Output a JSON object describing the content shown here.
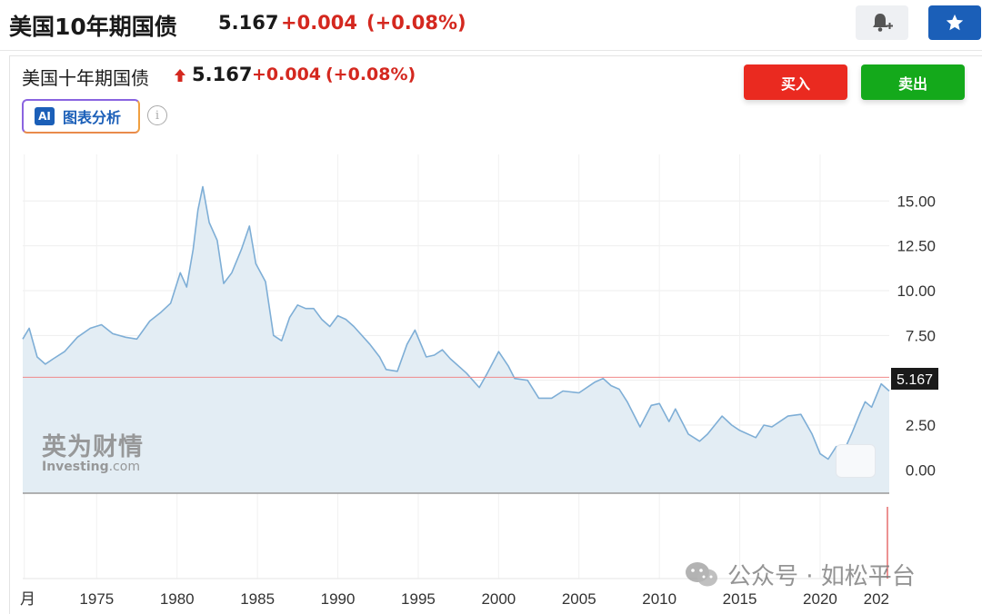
{
  "header": {
    "title": "美国10年期国债",
    "price": "5.167",
    "change": "+0.004",
    "change_pct": "(+0.08%)",
    "bell_icon": "bell-plus-icon",
    "star_icon": "star-icon"
  },
  "widget": {
    "name": "美国十年期国债",
    "price": "5.167",
    "change": "+0.004",
    "change_pct": "(+0.08%)",
    "buy_label": "买入",
    "sell_label": "卖出",
    "ai_badge": "AI",
    "ai_label": "图表分析",
    "info_icon": "i"
  },
  "watermark": {
    "cn": "英为财情",
    "en_bold": "Investing",
    "en_suffix": ".com"
  },
  "wechat": {
    "label": "公众号 · 如松平台"
  },
  "colors": {
    "up": "#d4281f",
    "buy": "#ea2a20",
    "sell": "#14a91b",
    "accent": "#1b5fb8",
    "line": "#7eaed6",
    "area": "#e3edf4"
  },
  "chart_data": {
    "type": "area",
    "title": "",
    "xlabel": "",
    "ylabel": "",
    "y_axis_position": "right",
    "ylim": [
      -1.3,
      17.6
    ],
    "y_ticks": [
      "15.00",
      "12.50",
      "10.00",
      "7.50",
      "5.00",
      "2.50",
      "0.00"
    ],
    "y_tick_values": [
      15,
      12.5,
      10,
      7.5,
      5,
      2.5,
      0
    ],
    "x_ticks": [
      "月",
      "1975",
      "1980",
      "1985",
      "1990",
      "1995",
      "2000",
      "2005",
      "2010",
      "2015",
      "2020",
      "202"
    ],
    "x_tick_values": [
      1970.5,
      1975,
      1980,
      1985,
      1990,
      1995,
      2000,
      2005,
      2010,
      2015,
      2020,
      2025
    ],
    "xlim": [
      1970.4,
      2024.3
    ],
    "current_value": 5.167,
    "current_label": "5.167",
    "series": [
      {
        "x": [
          1970.4,
          1970.8,
          1971.3,
          1971.8,
          1972.3,
          1973,
          1973.8,
          1974.6,
          1975.3,
          1976,
          1976.8,
          1977.5,
          1978.3,
          1979,
          1979.6,
          1980.2,
          1980.6,
          1981,
          1981.3,
          1981.6,
          1982,
          1982.5,
          1982.9,
          1983.4,
          1984,
          1984.5,
          1984.9,
          1985.5,
          1986,
          1986.5,
          1987,
          1987.5,
          1988,
          1988.5,
          1989,
          1989.5,
          1990,
          1990.5,
          1991,
          1992,
          1992.6,
          1993,
          1993.7,
          1994.3,
          1994.8,
          1995.5,
          1996,
          1996.5,
          1997,
          1998,
          1998.8,
          1999.3,
          2000,
          2000.6,
          2001,
          2001.8,
          2002.5,
          2003.3,
          2004,
          2005,
          2006,
          2006.5,
          2007,
          2007.5,
          2008,
          2008.8,
          2009.5,
          2010,
          2010.6,
          2011,
          2011.8,
          2012.5,
          2013,
          2013.9,
          2014.5,
          2015,
          2016,
          2016.5,
          2017,
          2018,
          2018.8,
          2019.5,
          2020,
          2020.5,
          2021,
          2021.6,
          2022,
          2022.5,
          2022.8,
          2023.2,
          2023.8,
          2024.3
        ],
        "y": [
          7.3,
          7.9,
          6.3,
          5.9,
          6.2,
          6.6,
          7.4,
          7.9,
          8.1,
          7.6,
          7.4,
          7.3,
          8.3,
          8.8,
          9.3,
          11.0,
          10.2,
          12.3,
          14.5,
          15.8,
          13.8,
          12.8,
          10.4,
          11.0,
          12.3,
          13.6,
          11.5,
          10.5,
          7.5,
          7.2,
          8.5,
          9.2,
          9.0,
          9.0,
          8.4,
          8.0,
          8.6,
          8.4,
          8.0,
          7.0,
          6.3,
          5.6,
          5.5,
          7.0,
          7.8,
          6.3,
          6.4,
          6.7,
          6.2,
          5.4,
          4.6,
          5.4,
          6.6,
          5.8,
          5.1,
          5.0,
          4.0,
          4.0,
          4.4,
          4.3,
          4.9,
          5.1,
          4.7,
          4.5,
          3.8,
          2.4,
          3.6,
          3.7,
          2.7,
          3.4,
          2.0,
          1.6,
          2.0,
          3.0,
          2.5,
          2.2,
          1.8,
          2.5,
          2.4,
          3.0,
          3.1,
          2.0,
          0.9,
          0.6,
          1.3,
          1.3,
          2.1,
          3.2,
          3.8,
          3.5,
          4.8,
          4.4
        ]
      }
    ]
  }
}
